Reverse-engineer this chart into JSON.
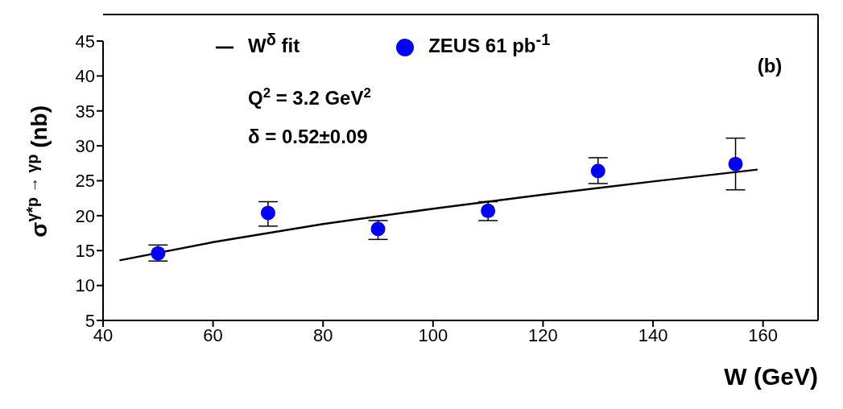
{
  "chart_data": {
    "type": "scatter",
    "xlabel": "W (GeV)",
    "ylabel": "σ$^{γ*p → γp}$ (nb)",
    "xlim": [
      40,
      170
    ],
    "xticks": [
      40,
      60,
      80,
      100,
      120,
      140,
      160
    ],
    "ylim": [
      5,
      45
    ],
    "yticks": [
      5,
      10,
      15,
      20,
      25,
      30,
      35,
      40,
      45
    ],
    "grid": false,
    "legend": "top",
    "marker": "circle",
    "series": [
      {
        "name": "ZEUS 61 pb$^{-1}$",
        "color": "#0000ff",
        "x": [
          50,
          70,
          90,
          110,
          130,
          155
        ],
        "values": [
          14.6,
          20.4,
          18.1,
          20.7,
          26.4,
          27.4
        ],
        "errors": [
          [
            13.5,
            15.8
          ],
          [
            18.5,
            22.0
          ],
          [
            16.6,
            19.3
          ],
          [
            19.3,
            22.0
          ],
          [
            24.6,
            28.3
          ],
          [
            23.7,
            31.1
          ]
        ]
      },
      {
        "name": "W$^{δ}$ fit",
        "type": "line",
        "color": "#000000",
        "line_style": "solid",
        "marker": "none",
        "x": [
          43,
          60,
          80,
          100,
          120,
          140,
          159
        ],
        "values": [
          13.6,
          16.2,
          18.8,
          21.0,
          23.0,
          24.9,
          26.6
        ]
      }
    ],
    "annotations": [
      "Q$^{2}$ = 3.2 GeV$^{2}$",
      "δ = 0.52±0.09",
      "(b)"
    ]
  }
}
